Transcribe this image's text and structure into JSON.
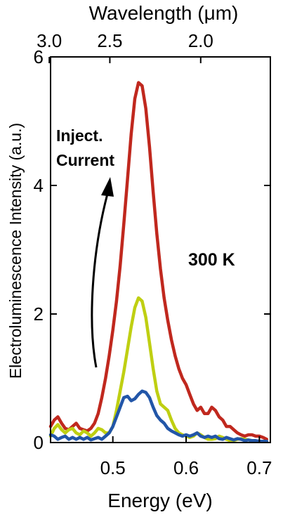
{
  "chart_data": {
    "type": "line",
    "title": "",
    "xlabel": "Energy (eV)",
    "ylabel": "Electroluminescence Intensity (a.u.)",
    "top_xlabel": "Wavelength (μm)",
    "xlim": [
      0.415,
      0.715
    ],
    "ylim": [
      0,
      6
    ],
    "x_ticks": [
      0.5,
      0.6,
      0.7
    ],
    "x_tick_labels": [
      "0.5",
      "0.6",
      "0.7"
    ],
    "y_ticks": [
      0,
      2,
      4,
      6
    ],
    "y_tick_labels": [
      "0",
      "2",
      "4",
      "6"
    ],
    "top_ticks": [
      3.0,
      2.5,
      2.0
    ],
    "top_tick_labels": [
      "3.0",
      "2.5",
      "2.0"
    ],
    "annotations": {
      "temperature": "300 K",
      "arrow_label_line1": "Inject.",
      "arrow_label_line2": "Current"
    },
    "grid": false,
    "series": [
      {
        "color": "#c0281e",
        "x": [
          0.415,
          0.42,
          0.425,
          0.43,
          0.435,
          0.44,
          0.445,
          0.45,
          0.455,
          0.46,
          0.465,
          0.47,
          0.475,
          0.48,
          0.485,
          0.49,
          0.495,
          0.5,
          0.505,
          0.51,
          0.515,
          0.52,
          0.525,
          0.53,
          0.535,
          0.54,
          0.545,
          0.55,
          0.555,
          0.56,
          0.565,
          0.57,
          0.575,
          0.58,
          0.585,
          0.59,
          0.595,
          0.6,
          0.605,
          0.61,
          0.615,
          0.62,
          0.625,
          0.63,
          0.635,
          0.64,
          0.645,
          0.65,
          0.655,
          0.66,
          0.665,
          0.67,
          0.675,
          0.68,
          0.685,
          0.69,
          0.695,
          0.7,
          0.705,
          0.71
        ],
        "values": [
          0.25,
          0.35,
          0.4,
          0.3,
          0.22,
          0.2,
          0.25,
          0.3,
          0.22,
          0.2,
          0.18,
          0.22,
          0.3,
          0.45,
          0.7,
          1.0,
          1.35,
          1.75,
          2.2,
          2.75,
          3.4,
          4.1,
          4.8,
          5.35,
          5.6,
          5.55,
          5.2,
          4.6,
          3.9,
          3.25,
          2.7,
          2.25,
          1.9,
          1.6,
          1.35,
          1.15,
          1.0,
          0.9,
          0.75,
          0.6,
          0.5,
          0.55,
          0.45,
          0.45,
          0.55,
          0.5,
          0.4,
          0.35,
          0.25,
          0.25,
          0.2,
          0.15,
          0.12,
          0.1,
          0.12,
          0.12,
          0.1,
          0.1,
          0.08,
          0.05
        ]
      },
      {
        "color": "#bfcf12",
        "x": [
          0.415,
          0.42,
          0.425,
          0.43,
          0.435,
          0.44,
          0.445,
          0.45,
          0.455,
          0.46,
          0.465,
          0.47,
          0.475,
          0.48,
          0.485,
          0.49,
          0.495,
          0.5,
          0.505,
          0.51,
          0.515,
          0.52,
          0.525,
          0.53,
          0.535,
          0.54,
          0.545,
          0.55,
          0.555,
          0.56,
          0.565,
          0.57,
          0.575,
          0.58,
          0.585,
          0.59,
          0.595,
          0.6,
          0.605,
          0.61,
          0.615,
          0.62,
          0.625,
          0.63,
          0.635,
          0.64,
          0.645,
          0.65,
          0.655,
          0.66,
          0.665,
          0.67,
          0.675,
          0.68,
          0.685,
          0.69,
          0.695,
          0.7,
          0.705,
          0.71
        ],
        "values": [
          0.1,
          0.22,
          0.28,
          0.2,
          0.15,
          0.2,
          0.22,
          0.15,
          0.12,
          0.18,
          0.15,
          0.1,
          0.15,
          0.22,
          0.2,
          0.15,
          0.15,
          0.25,
          0.5,
          0.8,
          1.1,
          1.45,
          1.8,
          2.1,
          2.25,
          2.2,
          1.95,
          1.55,
          1.15,
          0.8,
          0.6,
          0.55,
          0.5,
          0.35,
          0.22,
          0.15,
          0.12,
          0.1,
          0.08,
          0.1,
          0.15,
          0.12,
          0.08,
          0.05,
          0.05,
          0.06,
          0.1,
          0.08,
          0.05,
          0.03,
          0.03,
          0.05,
          0.06,
          0.05,
          0.04,
          0.03,
          0.02,
          0.02,
          0.02,
          0.02
        ]
      },
      {
        "color": "#2256a8",
        "x": [
          0.415,
          0.42,
          0.425,
          0.43,
          0.435,
          0.44,
          0.445,
          0.45,
          0.455,
          0.46,
          0.465,
          0.47,
          0.475,
          0.48,
          0.485,
          0.49,
          0.495,
          0.5,
          0.505,
          0.51,
          0.515,
          0.52,
          0.525,
          0.53,
          0.535,
          0.54,
          0.545,
          0.55,
          0.555,
          0.56,
          0.565,
          0.57,
          0.575,
          0.58,
          0.585,
          0.59,
          0.595,
          0.6,
          0.605,
          0.61,
          0.615,
          0.62,
          0.625,
          0.63,
          0.635,
          0.64,
          0.645,
          0.65,
          0.655,
          0.66,
          0.665,
          0.67,
          0.675,
          0.68,
          0.685,
          0.69,
          0.695,
          0.7,
          0.705,
          0.71
        ],
        "values": [
          0.12,
          0.1,
          0.05,
          0.08,
          0.1,
          0.05,
          0.08,
          0.05,
          0.08,
          0.05,
          0.08,
          0.04,
          0.06,
          0.08,
          0.05,
          0.1,
          0.15,
          0.25,
          0.4,
          0.55,
          0.7,
          0.72,
          0.65,
          0.68,
          0.75,
          0.8,
          0.78,
          0.7,
          0.55,
          0.42,
          0.35,
          0.3,
          0.22,
          0.18,
          0.15,
          0.12,
          0.1,
          0.12,
          0.1,
          0.12,
          0.15,
          0.1,
          0.08,
          0.1,
          0.08,
          0.1,
          0.06,
          0.05,
          0.08,
          0.06,
          0.04,
          0.06,
          0.05,
          0.03,
          0.04,
          0.03,
          0.03,
          0.02,
          0.02,
          0.02
        ]
      }
    ]
  }
}
